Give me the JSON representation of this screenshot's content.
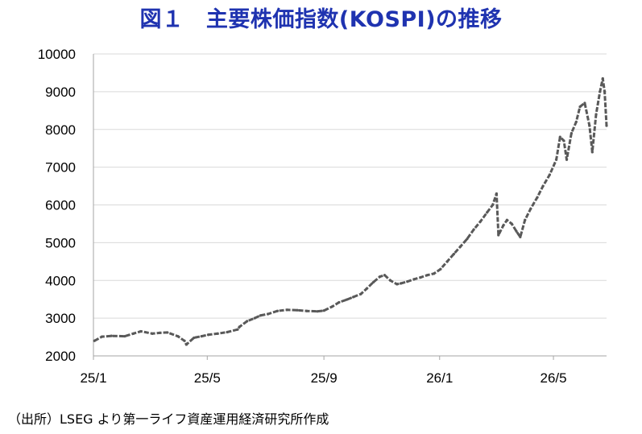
{
  "title": "図１　主要株価指数(KOSPI)の推移",
  "source": "（出所）LSEG より第一ライフ資産運用経済研究所作成",
  "colors": {
    "title": "#1f33b0",
    "series": "#595959",
    "axis": "#a6a6a6",
    "grid": "#d9d9d9"
  },
  "chart_data": {
    "type": "line",
    "title": "図１　主要株価指数(KOSPI)の推移",
    "xlabel": "",
    "ylabel": "",
    "x_ticks": [
      "25/1",
      "25/5",
      "25/9",
      "26/1",
      "26/5"
    ],
    "y_ticks": [
      "2000",
      "3000",
      "4000",
      "5000",
      "6000",
      "7000",
      "8000",
      "9000",
      "10000"
    ],
    "ylim": [
      2000,
      10000
    ],
    "xlim": [
      "2025-01-01",
      "2026-06-26"
    ],
    "grid": true,
    "legend": "none",
    "series": [
      {
        "x": [
          "2025-01-02",
          "2025-01-10",
          "2025-01-20",
          "2025-02-03",
          "2025-02-12",
          "2025-02-20",
          "2025-03-04",
          "2025-03-12",
          "2025-03-20",
          "2025-03-31",
          "2025-04-07",
          "2025-04-09",
          "2025-04-17",
          "2025-04-25",
          "2025-05-02",
          "2025-05-12",
          "2025-05-22",
          "2025-06-02",
          "2025-06-04",
          "2025-06-12",
          "2025-06-20",
          "2025-06-26",
          "2025-07-04",
          "2025-07-14",
          "2025-07-24",
          "2025-08-04",
          "2025-08-14",
          "2025-08-25",
          "2025-09-01",
          "2025-09-10",
          "2025-09-17",
          "2025-09-25",
          "2025-10-02",
          "2025-10-10",
          "2025-10-16",
          "2025-10-23",
          "2025-10-30",
          "2025-11-04",
          "2025-11-10",
          "2025-11-17",
          "2025-11-21",
          "2025-11-28",
          "2025-12-05",
          "2025-12-12",
          "2025-12-19",
          "2025-12-26",
          "2026-01-02",
          "2026-01-09",
          "2026-01-16",
          "2026-01-23",
          "2026-01-30",
          "2026-02-06",
          "2026-02-13",
          "2026-02-20",
          "2026-02-26",
          "2026-03-02",
          "2026-03-04",
          "2026-03-09",
          "2026-03-13",
          "2026-03-18",
          "2026-03-23",
          "2026-03-27",
          "2026-04-01",
          "2026-04-07",
          "2026-04-14",
          "2026-04-20",
          "2026-04-27",
          "2026-05-04",
          "2026-05-08",
          "2026-05-12",
          "2026-05-15",
          "2026-05-20",
          "2026-05-25",
          "2026-05-29",
          "2026-06-03",
          "2026-06-08",
          "2026-06-11",
          "2026-06-15",
          "2026-06-19",
          "2026-06-22",
          "2026-06-24",
          "2026-06-26"
        ],
        "values": [
          2400,
          2510,
          2530,
          2520,
          2590,
          2650,
          2590,
          2610,
          2620,
          2520,
          2400,
          2300,
          2480,
          2520,
          2560,
          2590,
          2630,
          2700,
          2770,
          2920,
          3000,
          3070,
          3110,
          3190,
          3220,
          3210,
          3190,
          3180,
          3200,
          3310,
          3420,
          3490,
          3560,
          3640,
          3780,
          3950,
          4100,
          4140,
          4000,
          3900,
          3920,
          3970,
          4030,
          4080,
          4140,
          4180,
          4300,
          4500,
          4700,
          4900,
          5100,
          5350,
          5560,
          5800,
          6000,
          6300,
          5200,
          5450,
          5600,
          5500,
          5300,
          5150,
          5600,
          5900,
          6200,
          6500,
          6800,
          7200,
          7800,
          7700,
          7200,
          7900,
          8200,
          8600,
          8700,
          8100,
          7400,
          8400,
          9000,
          9350,
          9000,
          8100
        ]
      }
    ]
  }
}
